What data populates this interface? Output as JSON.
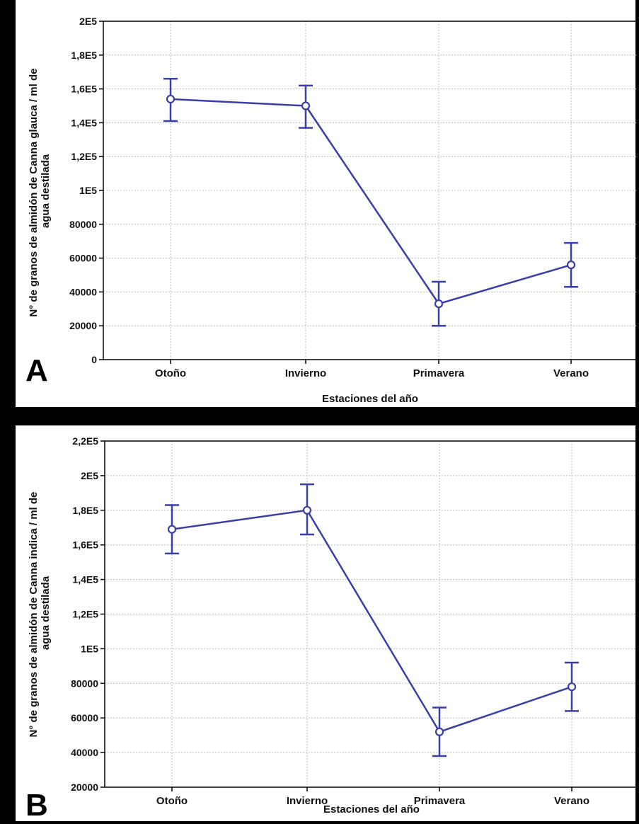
{
  "figure": {
    "panels": [
      {
        "letter": "A"
      },
      {
        "letter": "B"
      }
    ]
  },
  "colors": {
    "series": "#3a3fa8",
    "frame": "#000000",
    "panel_background": "#ffffff"
  },
  "chart_data": [
    {
      "type": "line",
      "panel": "A",
      "xlabel": "Estaciones del año",
      "ylabel_lines": [
        "N° de granos de almidón de Canna glauca / ml de",
        "agua destilada"
      ],
      "categories": [
        "Otoño",
        "Invierno",
        "Primavera",
        "Verano"
      ],
      "values": [
        154000,
        150000,
        33000,
        56000
      ],
      "error_low": [
        141000,
        137000,
        20000,
        43000
      ],
      "error_high": [
        166000,
        162000,
        46000,
        69000
      ],
      "ylim": [
        0,
        200000
      ],
      "yticks": [
        0,
        20000,
        40000,
        60000,
        80000,
        100000,
        120000,
        140000,
        160000,
        180000,
        200000
      ],
      "ytick_labels": [
        "0",
        "20000",
        "40000",
        "60000",
        "80000",
        "1E5",
        "1,2E5",
        "1,4E5",
        "1,6E5",
        "1,8E5",
        "2E5"
      ],
      "grid": true
    },
    {
      "type": "line",
      "panel": "B",
      "xlabel": "Estaciones del año",
      "ylabel_lines": [
        "N° de granos de almidón de Canna indica / ml de",
        "agua destilada"
      ],
      "categories": [
        "Otoño",
        "Invierno",
        "Primavera",
        "Verano"
      ],
      "values": [
        169000,
        180000,
        52000,
        78000
      ],
      "error_low": [
        155000,
        166000,
        38000,
        64000
      ],
      "error_high": [
        183000,
        195000,
        66000,
        92000
      ],
      "ylim": [
        20000,
        220000
      ],
      "yticks": [
        20000,
        40000,
        60000,
        80000,
        100000,
        120000,
        140000,
        160000,
        180000,
        200000,
        220000
      ],
      "ytick_labels": [
        "20000",
        "40000",
        "60000",
        "80000",
        "1E5",
        "1,2E5",
        "1,4E5",
        "1,6E5",
        "1,8E5",
        "2E5",
        "2,2E5"
      ],
      "grid": true
    }
  ]
}
